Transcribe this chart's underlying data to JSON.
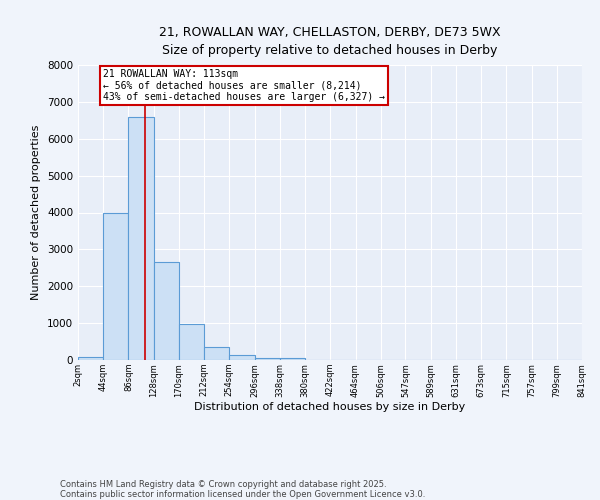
{
  "title_line1": "21, ROWALLAN WAY, CHELLASTON, DERBY, DE73 5WX",
  "title_line2": "Size of property relative to detached houses in Derby",
  "xlabel": "Distribution of detached houses by size in Derby",
  "ylabel": "Number of detached properties",
  "bar_edges": [
    2,
    44,
    86,
    128,
    170,
    212,
    254,
    296,
    338,
    380,
    422,
    464,
    506,
    547,
    589,
    631,
    673,
    715,
    757,
    799,
    841
  ],
  "bar_heights": [
    75,
    4000,
    6600,
    2650,
    980,
    340,
    130,
    60,
    50,
    0,
    0,
    0,
    0,
    0,
    0,
    0,
    0,
    0,
    0,
    0
  ],
  "bar_color": "#cce0f5",
  "bar_edge_color": "#5b9bd5",
  "vline_x": 113,
  "vline_color": "#cc0000",
  "annotation_text": "21 ROWALLAN WAY: 113sqm\n← 56% of detached houses are smaller (8,214)\n43% of semi-detached houses are larger (6,327) →",
  "annotation_box_color": "#cc0000",
  "ylim": [
    0,
    8000
  ],
  "tick_labels": [
    "2sqm",
    "44sqm",
    "86sqm",
    "128sqm",
    "170sqm",
    "212sqm",
    "254sqm",
    "296sqm",
    "338sqm",
    "380sqm",
    "422sqm",
    "464sqm",
    "506sqm",
    "547sqm",
    "589sqm",
    "631sqm",
    "673sqm",
    "715sqm",
    "757sqm",
    "799sqm",
    "841sqm"
  ],
  "footnote1": "Contains HM Land Registry data © Crown copyright and database right 2025.",
  "footnote2": "Contains public sector information licensed under the Open Government Licence v3.0.",
  "bg_color": "#f0f4fb",
  "plot_bg_color": "#e8eef8",
  "grid_color": "#ffffff"
}
